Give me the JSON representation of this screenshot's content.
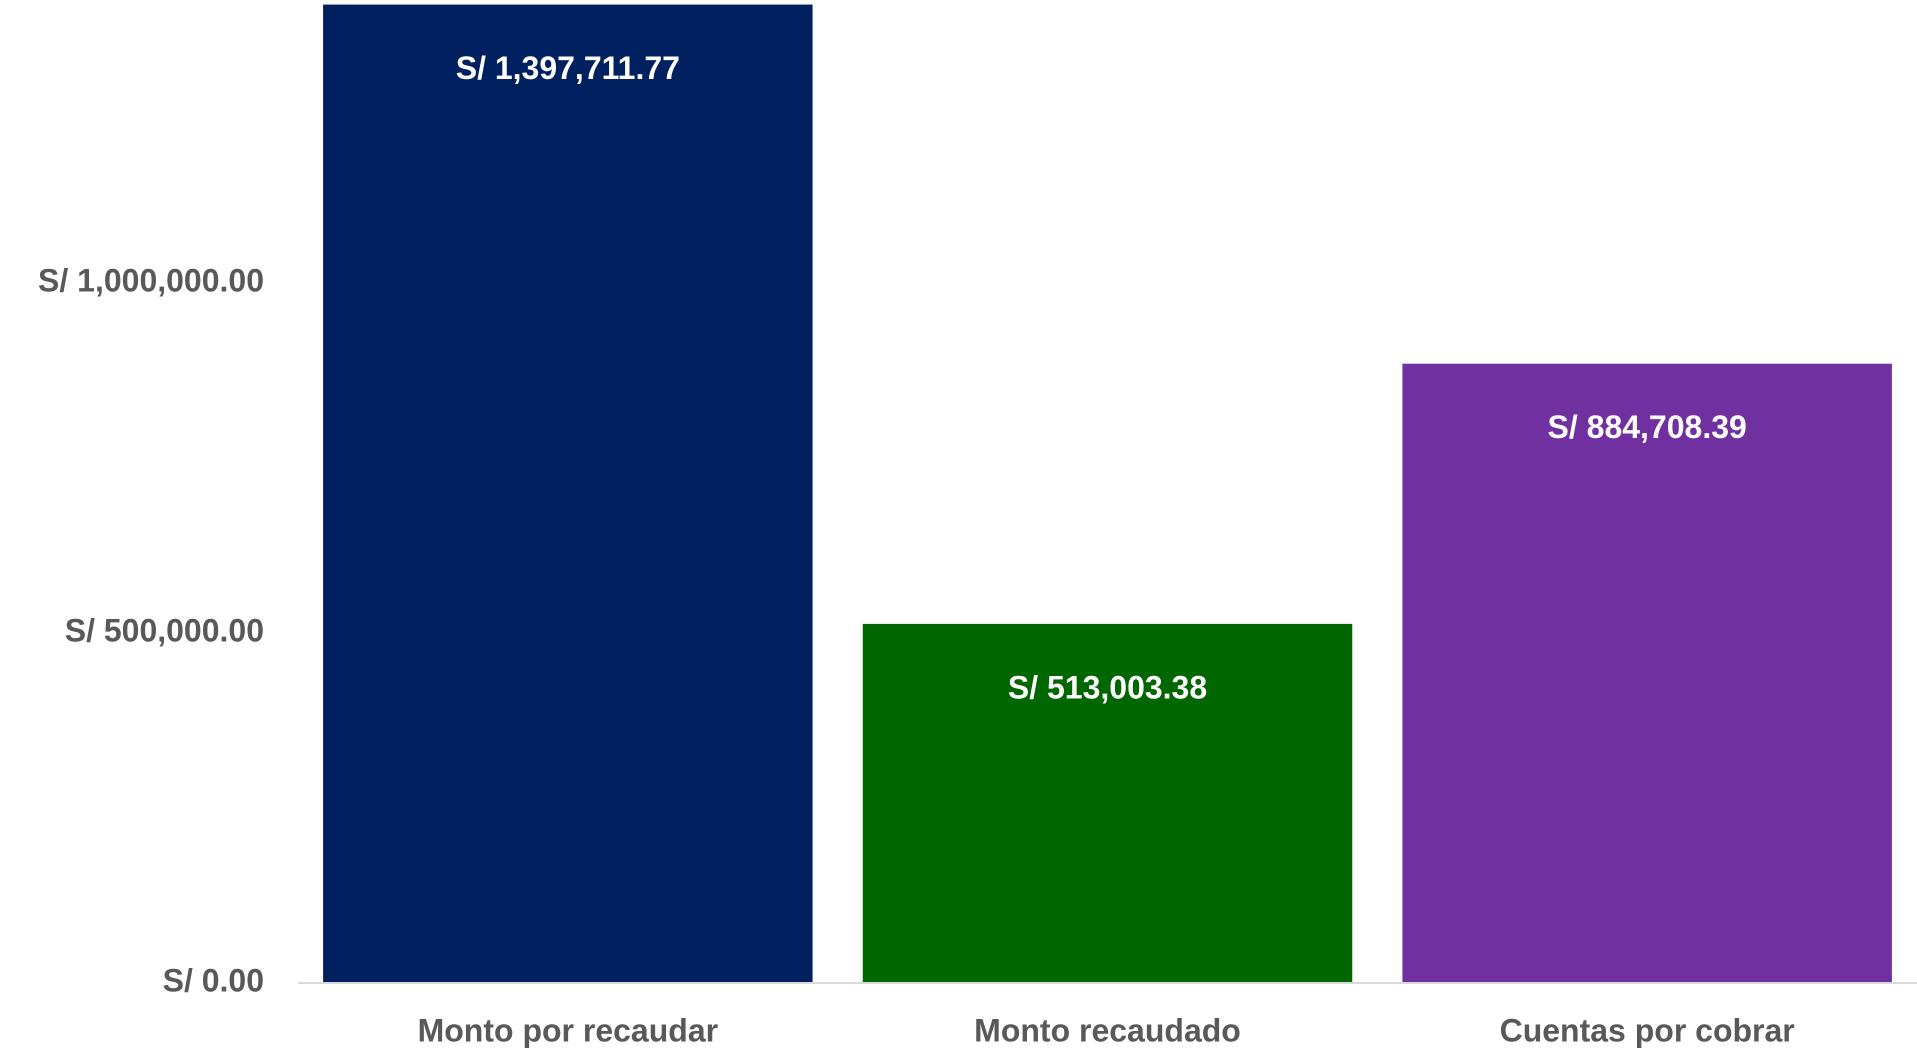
{
  "chart_data": {
    "type": "bar",
    "categories": [
      "Monto por recaudar",
      "Monto recaudado",
      "Cuentas por cobrar"
    ],
    "values": [
      1397711.77,
      513003.38,
      884708.39
    ],
    "value_labels": [
      "S/ 1,397,711.77",
      "S/ 513,003.38",
      "S/ 884,708.39"
    ],
    "colors": [
      "#002060",
      "#006600",
      "#7030a0"
    ],
    "ylim": [
      0,
      1400000
    ],
    "yticks": [
      {
        "value": 0,
        "label": "S/ 0.00"
      },
      {
        "value": 500000,
        "label": "S/ 500,000.00"
      },
      {
        "value": 1000000,
        "label": "S/ 1,000,000.00"
      }
    ],
    "grid": false
  }
}
